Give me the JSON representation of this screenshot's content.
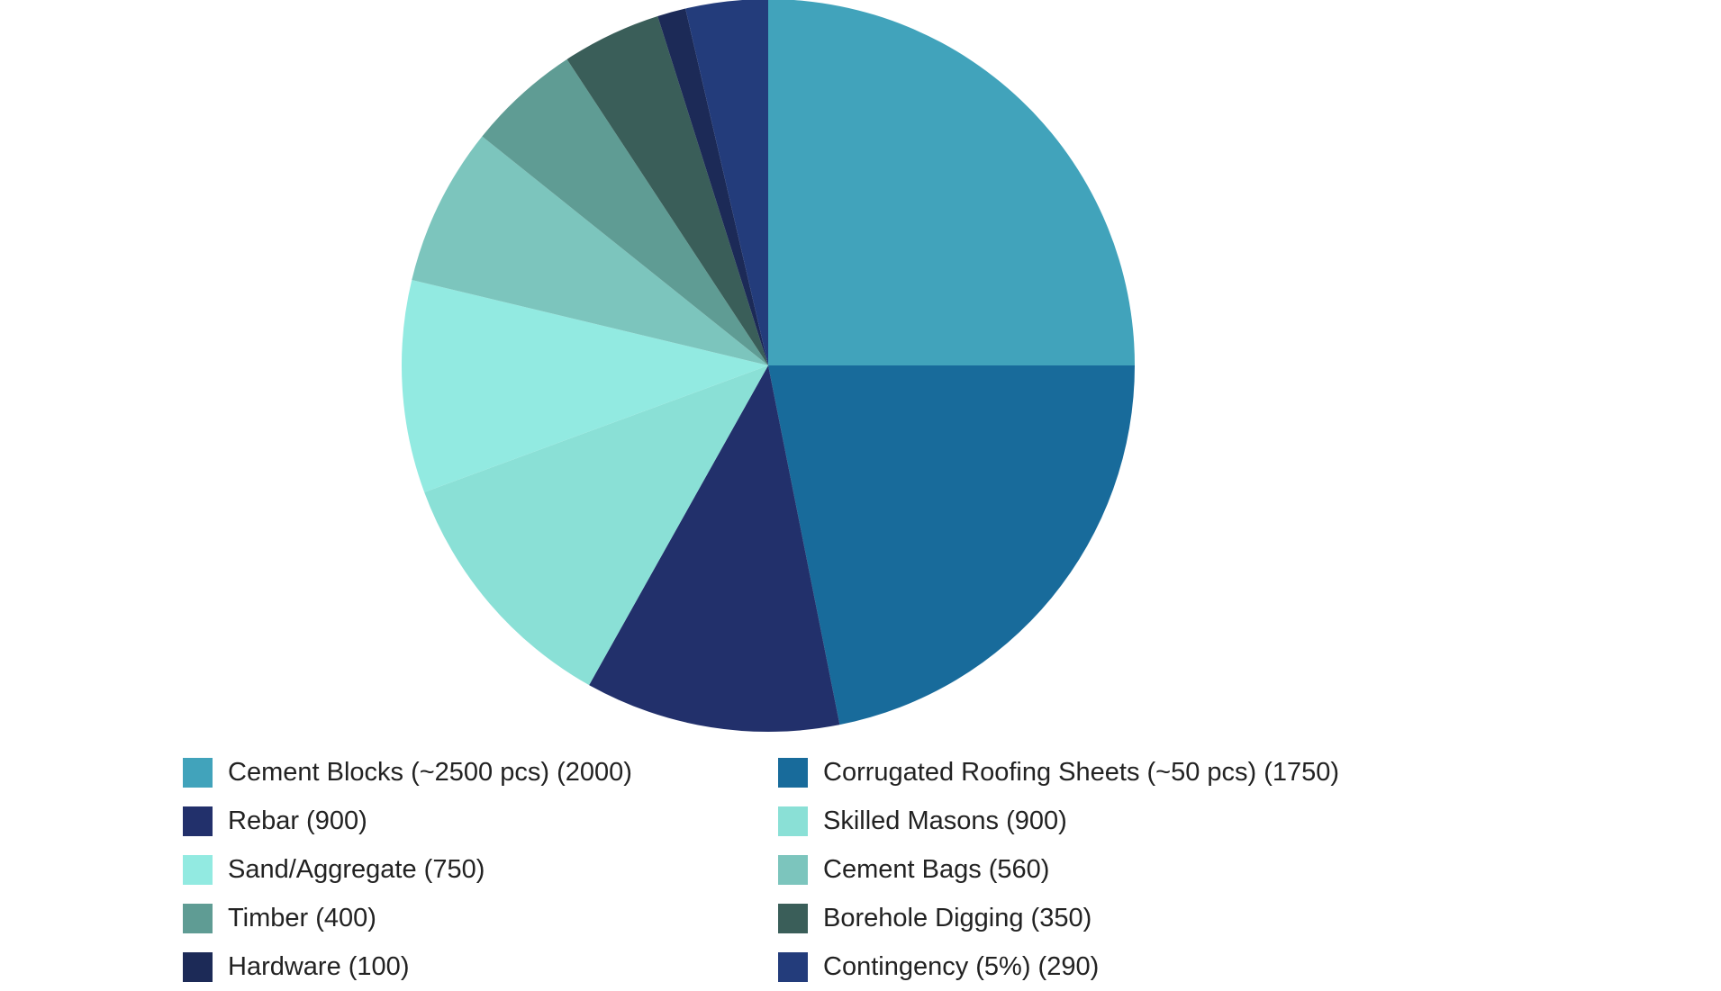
{
  "chart_data": {
    "type": "pie",
    "title": "",
    "legend_position": "bottom",
    "slices": [
      {
        "label": "Cement Blocks (~2500 pcs) (2000)",
        "value": 2000,
        "color": "#41a3bb"
      },
      {
        "label": "Corrugated Roofing Sheets (~50 pcs) (1750)",
        "value": 1750,
        "color": "#186b9b"
      },
      {
        "label": "Rebar (900)",
        "value": 900,
        "color": "#22306b"
      },
      {
        "label": "Skilled Masons (900)",
        "value": 900,
        "color": "#8ae0d6"
      },
      {
        "label": "Sand/Aggregate (750)",
        "value": 750,
        "color": "#92eae1"
      },
      {
        "label": "Cement Bags (560)",
        "value": 560,
        "color": "#7cc5bd"
      },
      {
        "label": "Timber (400)",
        "value": 400,
        "color": "#5f9c94"
      },
      {
        "label": "Borehole Digging (350)",
        "value": 350,
        "color": "#3a5e59"
      },
      {
        "label": "Hardware (100)",
        "value": 100,
        "color": "#1c2a57"
      },
      {
        "label": "Contingency (5%) (290)",
        "value": 290,
        "color": "#233c7b"
      }
    ]
  }
}
